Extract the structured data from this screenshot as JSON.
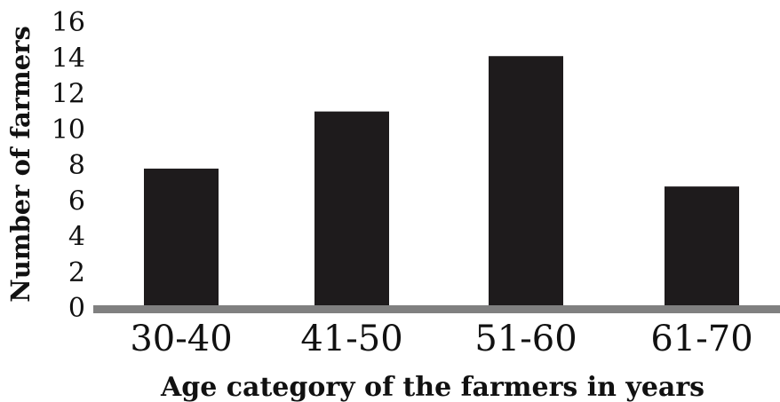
{
  "chart_data": {
    "type": "bar",
    "title": "",
    "xlabel": "Age category of the farmers in years",
    "ylabel": "Number of farmers",
    "categories": [
      "30-40",
      "41-50",
      "51-60",
      "61-70"
    ],
    "values": [
      7.8,
      11,
      14.1,
      6.8
    ],
    "ylim": [
      0,
      16
    ],
    "yticks": [
      0,
      2,
      4,
      6,
      8,
      10,
      12,
      14,
      16
    ],
    "grid": false,
    "legend": "none",
    "colors": {
      "bar": "#1e1b1c",
      "baseline": "#808080",
      "text": "#111111"
    }
  }
}
